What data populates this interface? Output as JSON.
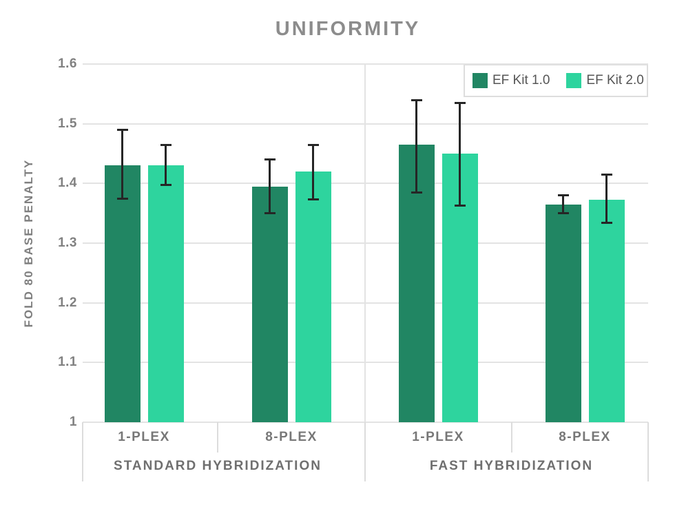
{
  "chart_data": {
    "type": "bar",
    "title": "UNIFORMITY",
    "ylabel": "FOLD 80 BASE PENALTY",
    "xlabel": "",
    "ymin": 1.0,
    "ymax": 1.6,
    "ytick_labels": [
      "1",
      "1.1",
      "1.2",
      "1.3",
      "1.4",
      "1.5",
      "1.6"
    ],
    "grid": true,
    "legend_position": "top-right",
    "sections": [
      {
        "label": "STANDARD HYBRIDIZATION",
        "categories": [
          "1-PLEX",
          "8-PLEX"
        ]
      },
      {
        "label": "FAST HYBRIDIZATION",
        "categories": [
          "1-PLEX",
          "8-PLEX"
        ]
      }
    ],
    "categories": [
      "1-PLEX",
      "8-PLEX",
      "1-PLEX",
      "8-PLEX"
    ],
    "series": [
      {
        "name": "EF Kit 1.0",
        "color": "#218663",
        "values": [
          1.43,
          1.395,
          1.465,
          1.365
        ],
        "error_high": [
          1.49,
          1.44,
          1.54,
          1.38
        ],
        "error_low": [
          1.375,
          1.35,
          1.385,
          1.35
        ]
      },
      {
        "name": "EF Kit 2.0",
        "color": "#2ed49e",
        "values": [
          1.43,
          1.42,
          1.45,
          1.373
        ],
        "error_high": [
          1.465,
          1.465,
          1.535,
          1.415
        ],
        "error_low": [
          1.398,
          1.373,
          1.363,
          1.334
        ]
      }
    ],
    "colors": {
      "gridline": "#e3e3e3",
      "axis_line": "#dcdcdc",
      "error_bar": "#262626",
      "title_text": "#8c8c8c",
      "axis_text": "#7f7f7f",
      "legend_text": "#555555"
    }
  }
}
